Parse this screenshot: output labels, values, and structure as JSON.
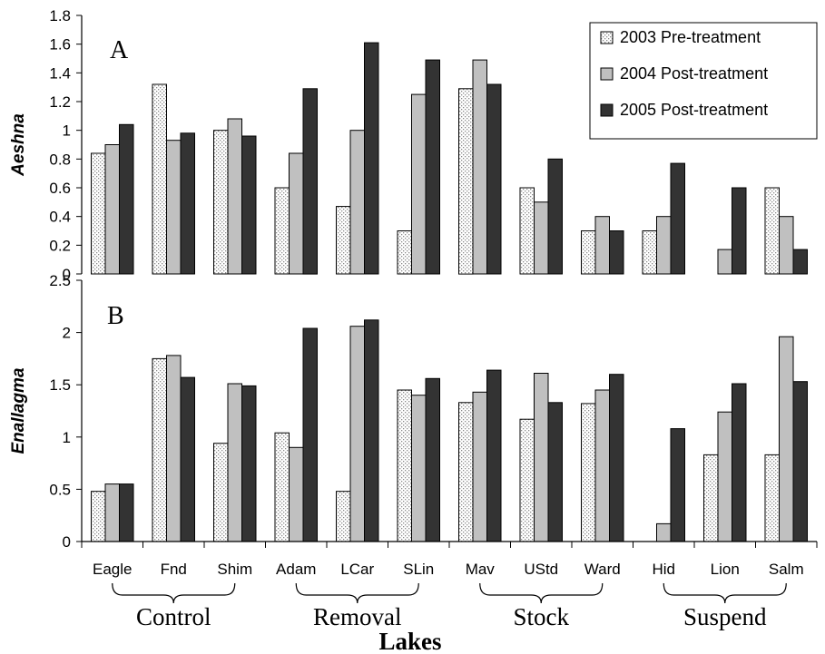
{
  "chart_data": [
    {
      "type": "bar",
      "panel_label": "A",
      "ylabel": "Aeshna",
      "ylim": [
        0,
        1.8
      ],
      "yticks": [
        "0",
        "0.2",
        "0.4",
        "0.6",
        "0.8",
        "1",
        "1.2",
        "1.4",
        "1.6",
        "1.8"
      ],
      "categories": [
        "Eagle",
        "Fnd",
        "Shim",
        "Adam",
        "LCar",
        "SLin",
        "Mav",
        "UStd",
        "Ward",
        "Hid",
        "Lion",
        "Salm"
      ],
      "legend_position": "top-right",
      "series": [
        {
          "name": "2003 Pre-treatment",
          "values": [
            0.84,
            1.32,
            1.0,
            0.6,
            0.47,
            0.3,
            1.29,
            0.6,
            0.3,
            0.3,
            0,
            0.6
          ]
        },
        {
          "name": "2004 Post-treatment",
          "values": [
            0.9,
            0.93,
            1.08,
            0.84,
            1.0,
            1.25,
            1.49,
            0.5,
            0.4,
            0.4,
            0.17,
            0.4
          ]
        },
        {
          "name": "2005 Post-treatment",
          "values": [
            1.04,
            0.98,
            0.96,
            1.29,
            1.61,
            1.49,
            1.32,
            0.8,
            0.3,
            0.77,
            0.6,
            0.17
          ]
        }
      ]
    },
    {
      "type": "bar",
      "panel_label": "B",
      "ylabel": "Enallagma",
      "ylim": [
        0,
        2.5
      ],
      "yticks": [
        "0",
        "0.5",
        "1",
        "1.5",
        "2",
        "2.5"
      ],
      "categories": [
        "Eagle",
        "Fnd",
        "Shim",
        "Adam",
        "LCar",
        "SLin",
        "Mav",
        "UStd",
        "Ward",
        "Hid",
        "Lion",
        "Salm"
      ],
      "xlabel": "Lakes",
      "groups": [
        {
          "label": "Control",
          "categories": [
            "Eagle",
            "Fnd",
            "Shim"
          ]
        },
        {
          "label": "Removal",
          "categories": [
            "Adam",
            "LCar",
            "SLin"
          ]
        },
        {
          "label": "Stock",
          "categories": [
            "Mav",
            "UStd",
            "Ward"
          ]
        },
        {
          "label": "Suspend",
          "categories": [
            "Hid",
            "Lion",
            "Salm"
          ]
        }
      ],
      "series": [
        {
          "name": "2003 Pre-treatment",
          "values": [
            0.48,
            1.75,
            0.94,
            1.04,
            0.48,
            1.45,
            1.33,
            1.17,
            1.32,
            0,
            0.83,
            0.83
          ]
        },
        {
          "name": "2004 Post-treatment",
          "values": [
            0.55,
            1.78,
            1.51,
            0.9,
            2.06,
            1.4,
            1.43,
            1.61,
            1.45,
            0.17,
            1.24,
            1.96
          ]
        },
        {
          "name": "2005 Post-treatment",
          "values": [
            0.55,
            1.57,
            1.49,
            2.04,
            2.12,
            1.56,
            1.64,
            1.33,
            1.6,
            1.08,
            1.51,
            1.53
          ]
        }
      ]
    }
  ],
  "colors": {
    "series_2003_fill": "#ffffff",
    "series_2003_dots": "#8a8a8a",
    "series_2004_fill": "#c0c0c0",
    "series_2005_fill": "#333333",
    "axis": "#000000"
  }
}
